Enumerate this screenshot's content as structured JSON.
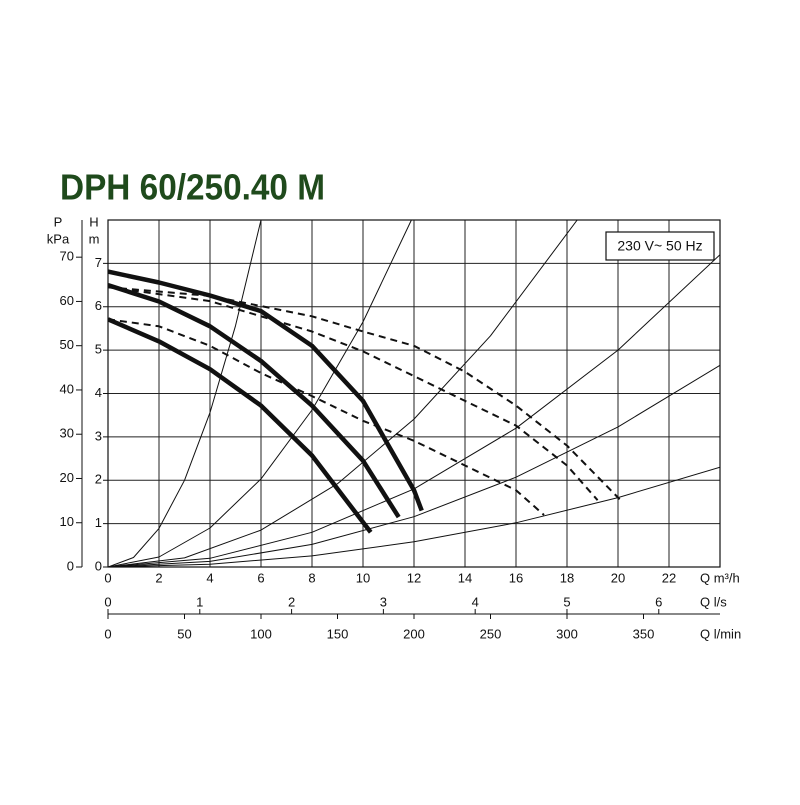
{
  "chart_data": {
    "type": "line",
    "title": "DPH 60/250.40 M",
    "title_color": "#1f4a1c",
    "annotation": "230 V~ 50 Hz",
    "x_label": "Q m³/h",
    "y_label": "H",
    "y_unit": "m",
    "y2_label": "P",
    "y2_unit": "kPa",
    "xlim": [
      0,
      24
    ],
    "xticks": [
      0,
      2,
      4,
      6,
      8,
      10,
      12,
      14,
      16,
      18,
      20,
      22
    ],
    "ylim": [
      0,
      8
    ],
    "yticks": [
      0,
      1,
      2,
      3,
      4,
      5,
      6,
      7
    ],
    "y2lim": [
      0,
      78.4
    ],
    "y2ticks": [
      0,
      10,
      20,
      30,
      40,
      50,
      60,
      70
    ],
    "grid": true,
    "secondary_x_axes": [
      {
        "label": "Q l/s",
        "lim": [
          0,
          6.667
        ],
        "ticks": [
          0,
          1,
          2,
          3,
          4,
          5,
          6
        ]
      },
      {
        "label": "Q l/min",
        "lim": [
          0,
          400
        ],
        "ticks": [
          0,
          50,
          100,
          150,
          200,
          250,
          300,
          350
        ]
      }
    ],
    "series": [
      {
        "color": "#111111",
        "style": "thin",
        "x": [
          0,
          1,
          2,
          3,
          4,
          5,
          6
        ],
        "values": [
          0,
          0.22,
          0.89,
          2,
          3.56,
          5.56,
          8
        ]
      },
      {
        "color": "#111111",
        "style": "thin",
        "x": [
          0,
          2,
          4,
          6,
          8,
          10,
          11.9
        ],
        "values": [
          0,
          0.23,
          0.9,
          2.03,
          3.62,
          5.65,
          8
        ]
      },
      {
        "color": "#111111",
        "style": "thin",
        "x": [
          0,
          3,
          6,
          9,
          12,
          15,
          18.4
        ],
        "values": [
          0,
          0.21,
          0.85,
          1.92,
          3.41,
          5.33,
          8
        ]
      },
      {
        "color": "#111111",
        "style": "thin",
        "x": [
          0,
          4,
          8,
          12,
          16,
          20,
          24
        ],
        "values": [
          0,
          0.2,
          0.8,
          1.8,
          3.2,
          5,
          7.2
        ]
      },
      {
        "color": "#111111",
        "style": "thin",
        "x": [
          0,
          4,
          8,
          12,
          16,
          20,
          24
        ],
        "values": [
          0,
          0.13,
          0.52,
          1.16,
          2.07,
          3.23,
          4.65
        ]
      },
      {
        "color": "#111111",
        "style": "thin",
        "x": [
          0,
          4,
          8,
          12,
          16,
          20,
          24
        ],
        "values": [
          0,
          0.064,
          0.256,
          0.58,
          1.02,
          1.6,
          2.3
        ]
      },
      {
        "color": "#111111",
        "style": "solid",
        "x": [
          0,
          2,
          4,
          6,
          8,
          10,
          12,
          12.3
        ],
        "values": [
          6.81,
          6.56,
          6.26,
          5.9,
          5.1,
          3.83,
          1.77,
          1.3
        ]
      },
      {
        "color": "#111111",
        "style": "solid",
        "x": [
          0,
          2,
          4,
          6,
          8,
          10,
          11.4
        ],
        "values": [
          6.5,
          6.12,
          5.55,
          4.75,
          3.72,
          2.45,
          1.15
        ]
      },
      {
        "color": "#111111",
        "style": "solid",
        "x": [
          0,
          2,
          4,
          6,
          8,
          10.3
        ],
        "values": [
          5.71,
          5.2,
          4.56,
          3.72,
          2.57,
          0.8
        ]
      },
      {
        "color": "#111111",
        "style": "dashed",
        "x": [
          0,
          4,
          8,
          10,
          12,
          14,
          16,
          18,
          20.1
        ],
        "values": [
          6.45,
          6.25,
          5.78,
          5.43,
          5.1,
          4.5,
          3.72,
          2.8,
          1.54
        ]
      },
      {
        "color": "#111111",
        "style": "dashed",
        "x": [
          0,
          4,
          8,
          10,
          12,
          14,
          16,
          18,
          19.2
        ],
        "values": [
          6.45,
          6.13,
          5.43,
          4.97,
          4.4,
          3.83,
          3.26,
          2.34,
          1.54
        ]
      },
      {
        "color": "#111111",
        "style": "dashed",
        "x": [
          0,
          2,
          4,
          6,
          8,
          10,
          12,
          14,
          16,
          17.1
        ],
        "values": [
          5.71,
          5.55,
          5.1,
          4.47,
          3.94,
          3.37,
          2.91,
          2.34,
          1.77,
          1.2
        ]
      }
    ]
  }
}
